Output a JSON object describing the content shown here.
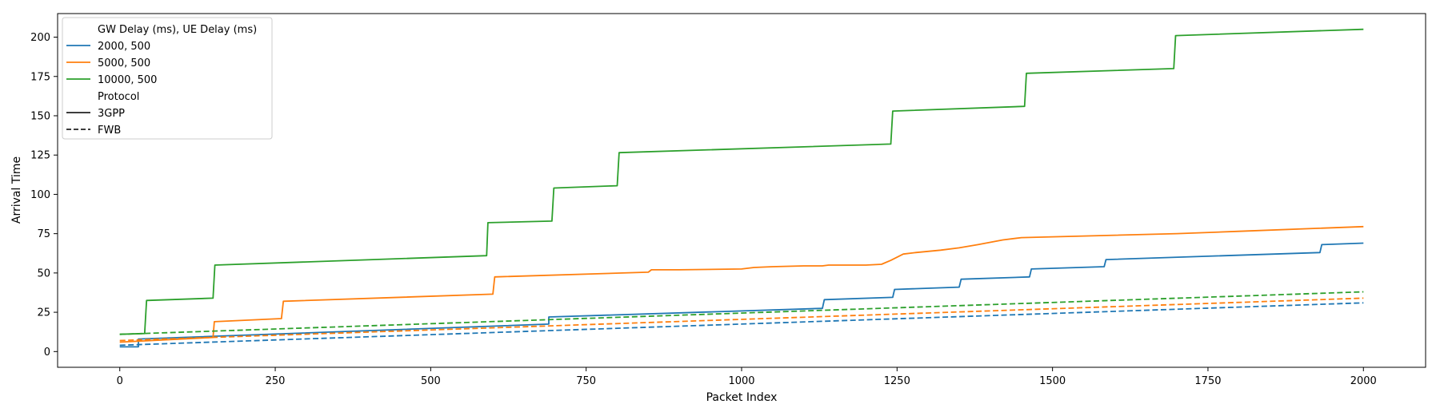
{
  "chart_data": {
    "type": "line",
    "xlabel": "Packet Index",
    "ylabel": "Arrival Time",
    "xlim": [
      -100,
      2100
    ],
    "ylim": [
      -10,
      215
    ],
    "xticks": [
      0,
      250,
      500,
      750,
      1000,
      1250,
      1500,
      1750,
      2000
    ],
    "yticks": [
      0,
      25,
      50,
      75,
      100,
      125,
      150,
      175,
      200
    ],
    "grid": false,
    "legend": {
      "placement": "top-left",
      "group_title_1": "GW Delay (ms), UE Delay (ms)",
      "group_title_2": "Protocol",
      "colors": [
        {
          "label": "2000, 500",
          "color": "#1f77b4"
        },
        {
          "label": "5000, 500",
          "color": "#ff7f0e"
        },
        {
          "label": "10000, 500",
          "color": "#2ca02c"
        }
      ],
      "styles": [
        {
          "label": "3GPP",
          "dash": "solid"
        },
        {
          "label": "FWB",
          "dash": "dashed"
        }
      ]
    },
    "series": [
      {
        "color": "#1f77b4",
        "dash": "solid",
        "x": [
          0,
          30,
          30,
          690,
          690,
          1130,
          1133,
          1243,
          1246,
          1350,
          1353,
          1463,
          1466,
          1583,
          1586,
          1930,
          1933,
          2000
        ],
        "y": [
          3,
          3,
          8,
          17.5,
          22,
          27.5,
          33,
          34.5,
          39.5,
          41,
          46,
          47.5,
          52.5,
          54,
          58.5,
          63,
          68,
          69
        ]
      },
      {
        "color": "#ff7f0e",
        "dash": "solid",
        "x": [
          0,
          150,
          152,
          260,
          263,
          600,
          603,
          850,
          855,
          900,
          1000,
          1020,
          1050,
          1100,
          1130,
          1140,
          1200,
          1225,
          1240,
          1260,
          1280,
          1320,
          1350,
          1380,
          1420,
          1450,
          1500,
          1600,
          1700,
          1800,
          2000
        ],
        "y": [
          6,
          9,
          19,
          21,
          32,
          36.5,
          47.5,
          50.5,
          52,
          52,
          52.5,
          53.5,
          54,
          54.5,
          54.5,
          55,
          55,
          55.5,
          58,
          62,
          63,
          64.5,
          66,
          68,
          71,
          72.5,
          73,
          74,
          75,
          76.5,
          79.5
        ]
      },
      {
        "color": "#2ca02c",
        "dash": "solid",
        "x": [
          0,
          40,
          43,
          150,
          153,
          590,
          592,
          695,
          698,
          800,
          803,
          1240,
          1243,
          1455,
          1458,
          1695,
          1698,
          2000
        ],
        "y": [
          11,
          11.5,
          32.5,
          34,
          55,
          61,
          82,
          83,
          104,
          105.5,
          126.5,
          132,
          153,
          156,
          177,
          180,
          201,
          205
        ]
      },
      {
        "color": "#1f77b4",
        "dash": "dashed",
        "x": [
          0,
          2000
        ],
        "y": [
          4,
          31
        ]
      },
      {
        "color": "#ff7f0e",
        "dash": "dashed",
        "x": [
          0,
          2000
        ],
        "y": [
          7,
          34
        ]
      },
      {
        "color": "#2ca02c",
        "dash": "dashed",
        "x": [
          0,
          2000
        ],
        "y": [
          11,
          38
        ]
      }
    ]
  }
}
